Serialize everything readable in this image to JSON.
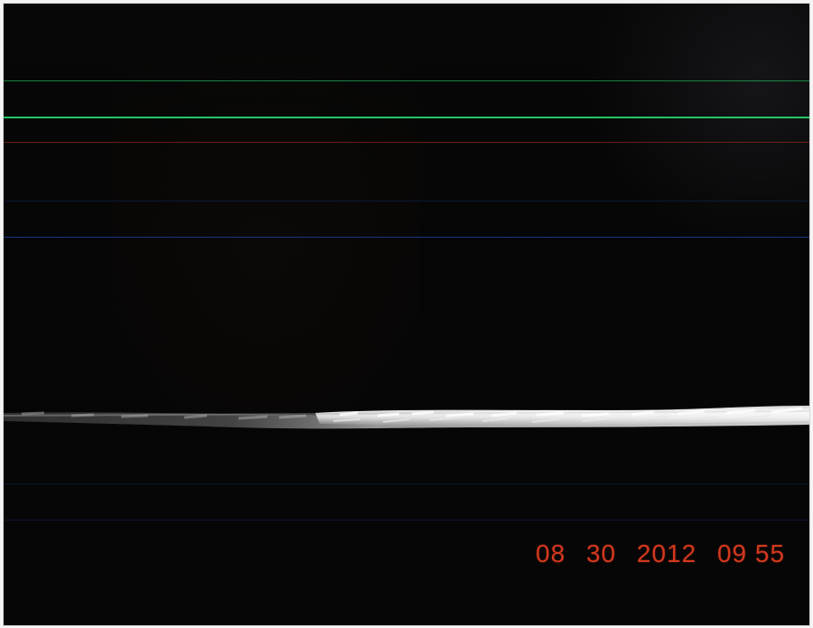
{
  "photo": {
    "timestamp": {
      "month": "08",
      "day": "30",
      "year": "2012",
      "time": "09 55"
    },
    "colors": {
      "background": "#060606",
      "timestamp": "#d2381e",
      "green_scan": "#27d06a",
      "red_scan": "#8d2a1f",
      "blue_scan": "#1e49b8"
    }
  }
}
